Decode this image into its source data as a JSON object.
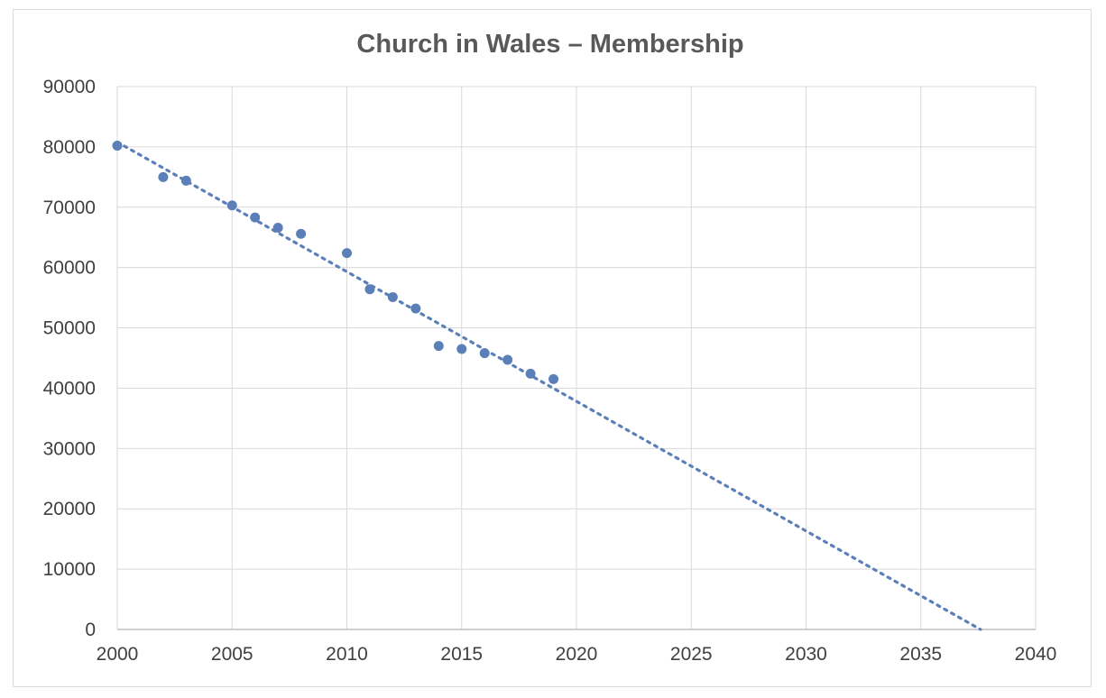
{
  "chart_data": {
    "type": "scatter",
    "title": "Church in Wales – Membership",
    "xlabel": "",
    "ylabel": "",
    "xlim": [
      2000,
      2040
    ],
    "ylim": [
      0,
      90000
    ],
    "x_ticks": [
      "2000",
      "2005",
      "2010",
      "2015",
      "2020",
      "2025",
      "2030",
      "2035",
      "2040"
    ],
    "y_ticks": [
      "0",
      "10000",
      "20000",
      "30000",
      "40000",
      "50000",
      "60000",
      "70000",
      "80000",
      "90000"
    ],
    "grid": true,
    "legend": "none",
    "series": [
      {
        "x": [
          2000,
          2002,
          2003,
          2005,
          2006,
          2007,
          2008,
          2010,
          2011,
          2012,
          2013,
          2014,
          2015,
          2016,
          2017,
          2018,
          2019
        ],
        "y": [
          80200,
          75000,
          74400,
          70300,
          68300,
          66600,
          65600,
          62400,
          56400,
          55100,
          53200,
          47000,
          46500,
          45800,
          44700,
          42400,
          41500
        ],
        "color": "#5b7fb8"
      }
    ],
    "trendline": {
      "type": "linear",
      "style": "dotted",
      "color": "#5b7fb8",
      "x": [
        2000,
        2037.6
      ],
      "y": [
        80800,
        0
      ]
    }
  }
}
